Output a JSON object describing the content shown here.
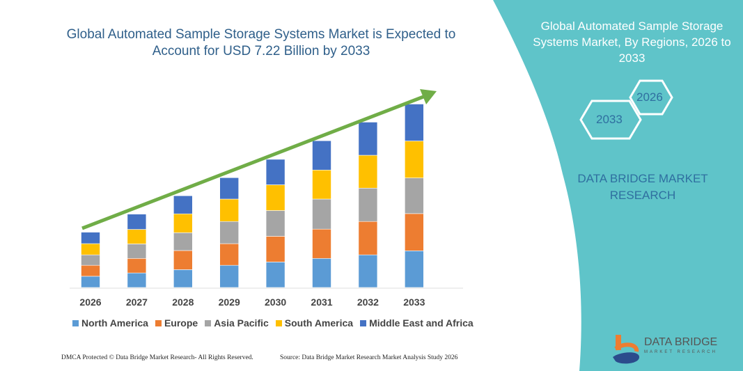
{
  "header": {
    "title": "Global Automated Sample Storage Systems Market is Expected to Account for USD 7.22 Billion by 2033"
  },
  "side_panel": {
    "title": "Global Automated Sample Storage Systems Market, By Regions, 2026 to 2033",
    "hex_start": "2026",
    "hex_end": "2033",
    "brand": "DATA BRIDGE MARKET RESEARCH",
    "bg_color": "#5fc4c9"
  },
  "logo": {
    "text": "DATA BRIDGE",
    "subtext": "MARKET RESEARCH"
  },
  "footer": {
    "left": "DMCA Protected © Data Bridge Market Research- All Rights Reserved.",
    "right": "Source: Data Bridge Market Research Market Analysis Study 2026"
  },
  "chart_data": {
    "type": "bar",
    "stacked": true,
    "categories": [
      "2026",
      "2027",
      "2028",
      "2029",
      "2030",
      "2031",
      "2032",
      "2033"
    ],
    "series": [
      {
        "name": "North America",
        "color": "#5b9bd5",
        "values": [
          0.44,
          0.57,
          0.7,
          0.87,
          1.0,
          1.14,
          1.28,
          1.44
        ]
      },
      {
        "name": "Europe",
        "color": "#ed7d31",
        "values": [
          0.43,
          0.57,
          0.75,
          0.85,
          1.01,
          1.15,
          1.31,
          1.46
        ]
      },
      {
        "name": "Asia Pacific",
        "color": "#a5a5a5",
        "values": [
          0.41,
          0.57,
          0.7,
          0.87,
          1.01,
          1.18,
          1.31,
          1.4
        ]
      },
      {
        "name": "South America",
        "color": "#ffc000",
        "values": [
          0.44,
          0.57,
          0.74,
          0.88,
          1.01,
          1.14,
          1.29,
          1.45
        ]
      },
      {
        "name": "Middle East and Africa",
        "color": "#4472c4",
        "values": [
          0.45,
          0.6,
          0.71,
          0.84,
          1.0,
          1.15,
          1.3,
          1.45
        ]
      }
    ],
    "legend_position": "bottom",
    "grid": false,
    "trend_arrow_color": "#70ad47"
  }
}
